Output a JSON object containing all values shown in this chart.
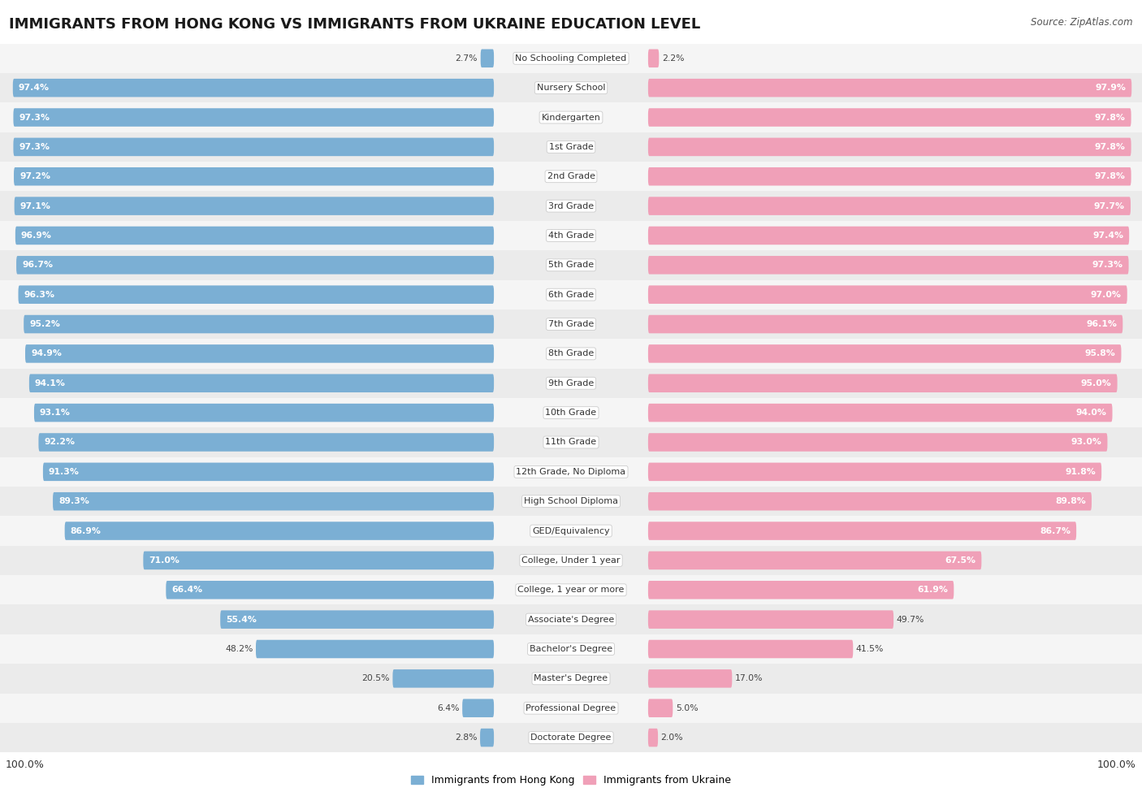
{
  "title": "IMMIGRANTS FROM HONG KONG VS IMMIGRANTS FROM UKRAINE EDUCATION LEVEL",
  "source": "Source: ZipAtlas.com",
  "categories": [
    "No Schooling Completed",
    "Nursery School",
    "Kindergarten",
    "1st Grade",
    "2nd Grade",
    "3rd Grade",
    "4th Grade",
    "5th Grade",
    "6th Grade",
    "7th Grade",
    "8th Grade",
    "9th Grade",
    "10th Grade",
    "11th Grade",
    "12th Grade, No Diploma",
    "High School Diploma",
    "GED/Equivalency",
    "College, Under 1 year",
    "College, 1 year or more",
    "Associate's Degree",
    "Bachelor's Degree",
    "Master's Degree",
    "Professional Degree",
    "Doctorate Degree"
  ],
  "hong_kong": [
    2.7,
    97.4,
    97.3,
    97.3,
    97.2,
    97.1,
    96.9,
    96.7,
    96.3,
    95.2,
    94.9,
    94.1,
    93.1,
    92.2,
    91.3,
    89.3,
    86.9,
    71.0,
    66.4,
    55.4,
    48.2,
    20.5,
    6.4,
    2.8
  ],
  "ukraine": [
    2.2,
    97.9,
    97.8,
    97.8,
    97.8,
    97.7,
    97.4,
    97.3,
    97.0,
    96.1,
    95.8,
    95.0,
    94.0,
    93.0,
    91.8,
    89.8,
    86.7,
    67.5,
    61.9,
    49.7,
    41.5,
    17.0,
    5.0,
    2.0
  ],
  "hk_color": "#7bafd4",
  "ua_color": "#f0a0b8",
  "title_fontsize": 13,
  "label_fontsize": 8.0,
  "value_fontsize": 7.8,
  "legend_fontsize": 9,
  "bar_height": 0.62
}
